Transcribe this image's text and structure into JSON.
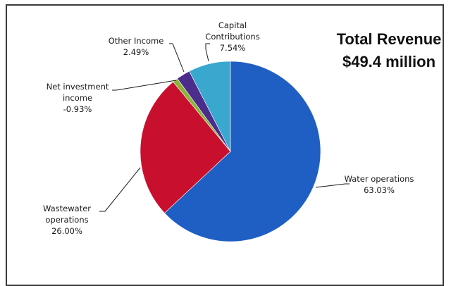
{
  "chart_data": {
    "type": "pie",
    "title": [
      "Total Revenue",
      "$49.4 million"
    ],
    "slices": [
      {
        "name": "Water operations",
        "value": 63.03,
        "value_label": "63.03%",
        "color": "#1f5fc4"
      },
      {
        "name": "Wastewater operations",
        "value": 26.0,
        "value_label": "26.00%",
        "color": "#c8102e"
      },
      {
        "name": "Net investment income",
        "value": -0.93,
        "value_label": "-0.93%",
        "color": "#8db33a"
      },
      {
        "name": "Other Income",
        "value": 2.49,
        "value_label": "2.49%",
        "color": "#4b2d8c"
      },
      {
        "name": "Capital Contributions",
        "value": 7.54,
        "value_label": "7.54%",
        "color": "#3aa7cf"
      }
    ],
    "labels": [
      {
        "lines": [
          "Water operations",
          "63.03%"
        ]
      },
      {
        "lines": [
          "Wastewater",
          "operations",
          "26.00%"
        ]
      },
      {
        "lines": [
          "Net investment",
          "income",
          "-0.93%"
        ]
      },
      {
        "lines": [
          "Other Income",
          "2.49%"
        ]
      },
      {
        "lines": [
          "Capital",
          "Contributions",
          "7.54%"
        ]
      }
    ]
  }
}
